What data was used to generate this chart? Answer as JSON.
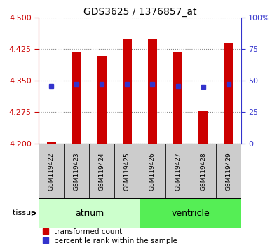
{
  "title": "GDS3625 / 1376857_at",
  "samples": [
    "GSM119422",
    "GSM119423",
    "GSM119424",
    "GSM119425",
    "GSM119426",
    "GSM119427",
    "GSM119428",
    "GSM119429"
  ],
  "bar_bottom": 4.2,
  "bar_tops": [
    4.205,
    4.418,
    4.408,
    4.448,
    4.448,
    4.418,
    4.278,
    4.44
  ],
  "percentile_values": [
    4.337,
    4.342,
    4.342,
    4.342,
    4.342,
    4.337,
    4.335,
    4.342
  ],
  "bar_color": "#cc0000",
  "dot_color": "#3333cc",
  "ylim_left": [
    4.2,
    4.5
  ],
  "ylim_right": [
    0,
    100
  ],
  "yticks_left": [
    4.2,
    4.275,
    4.35,
    4.425,
    4.5
  ],
  "yticks_right": [
    0,
    25,
    50,
    75,
    100
  ],
  "ytick_labels_right": [
    "0",
    "25",
    "50",
    "75",
    "100%"
  ],
  "groups": [
    {
      "label": "atrium",
      "start": 0,
      "end": 3,
      "color": "#ccffcc"
    },
    {
      "label": "ventricle",
      "start": 4,
      "end": 7,
      "color": "#55ee55"
    }
  ],
  "sample_box_color": "#cccccc",
  "left_tick_color": "#cc0000",
  "right_tick_color": "#3333cc",
  "bar_width": 0.35,
  "title_fontsize": 10
}
